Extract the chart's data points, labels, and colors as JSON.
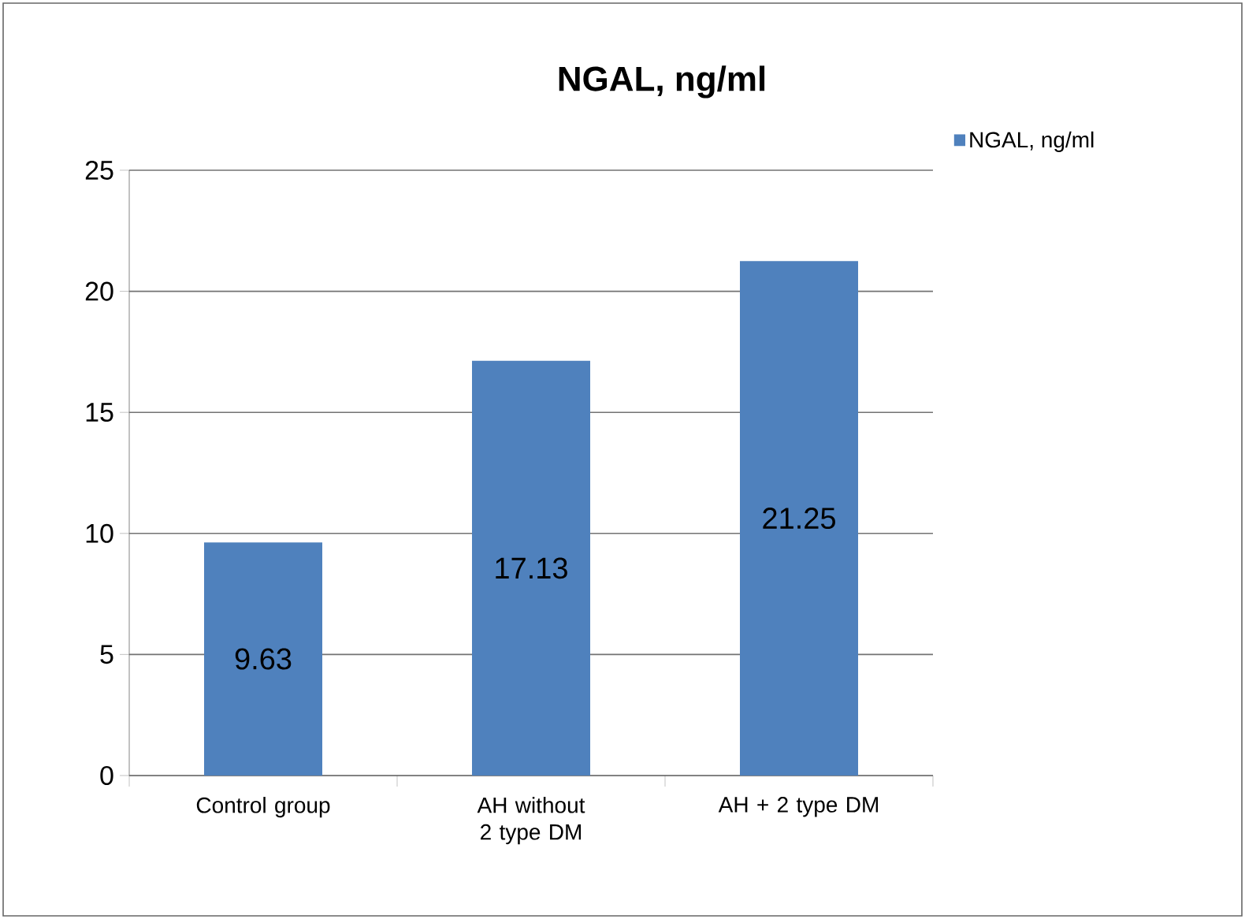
{
  "chart_data": {
    "type": "bar",
    "title": "NGAL, ng/ml",
    "categories": [
      "Control group",
      "AH without 2 type DM",
      "AH + 2 type DM"
    ],
    "series": [
      {
        "name": "NGAL, ng/ml",
        "color": "#4f81bd",
        "values": [
          9.63,
          17.13,
          21.25
        ]
      }
    ],
    "ylim": [
      0,
      25
    ],
    "yticks": [
      0,
      5,
      10,
      15,
      20,
      25
    ],
    "grid": "y",
    "legend": "top right",
    "data_labels": true
  }
}
